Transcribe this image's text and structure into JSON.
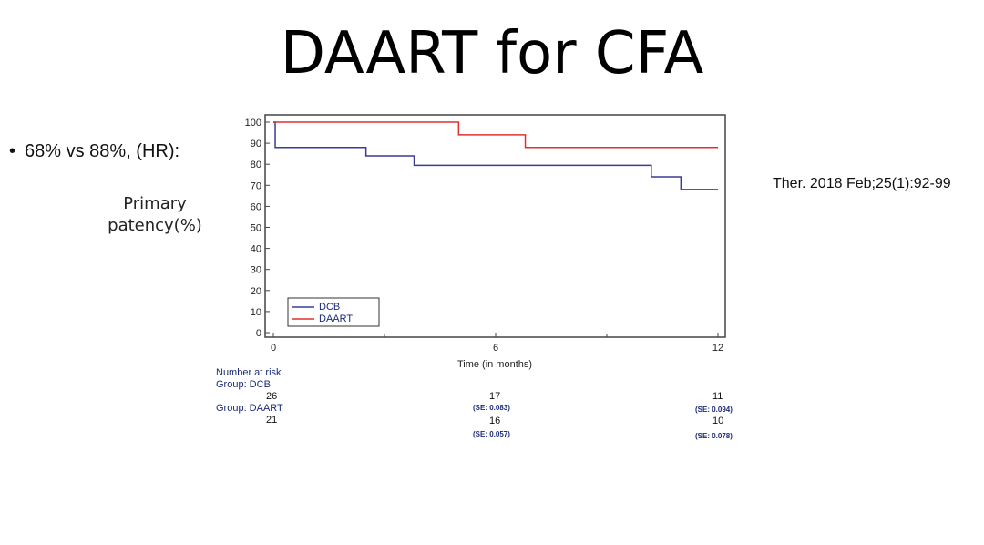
{
  "slide": {
    "title": "DAART for CFA",
    "bullet": "68% vs 88%, (HR):",
    "y_axis_label_line1": "Primary",
    "y_axis_label_line2": "patency(%)",
    "reference": "Ther. 2018 Feb;25(1):92-99"
  },
  "chart_data": {
    "type": "line",
    "step": true,
    "xlabel": "Time (in months)",
    "xlim": [
      0,
      12
    ],
    "ylim": [
      0,
      100
    ],
    "x_ticks": [
      0,
      6,
      12
    ],
    "y_ticks": [
      0,
      10,
      20,
      30,
      40,
      50,
      60,
      70,
      80,
      90,
      100
    ],
    "legend_position": "bottom-left",
    "series": [
      {
        "name": "DCB",
        "color": "#3b3b9a",
        "x": [
          0,
          0.05,
          2.5,
          3.8,
          10.2,
          11.0,
          12
        ],
        "y": [
          100,
          88,
          84,
          79.5,
          74,
          68,
          68
        ]
      },
      {
        "name": "DAART",
        "color": "#e03030",
        "x": [
          0,
          5.0,
          6.8,
          12
        ],
        "y": [
          100,
          94,
          88,
          88
        ]
      }
    ],
    "risk_table": {
      "title": "Number at risk",
      "groups": [
        {
          "label": "Group: DCB",
          "counts": [
            "26",
            "17",
            "11"
          ],
          "se": [
            "",
            "(SE: 0.083)",
            "(SE: 0.094)"
          ]
        },
        {
          "label": "Group: DAART",
          "counts": [
            "21",
            "16",
            "10"
          ],
          "se": [
            "",
            "(SE: 0.057)",
            "(SE: 0.078)"
          ]
        }
      ]
    }
  }
}
